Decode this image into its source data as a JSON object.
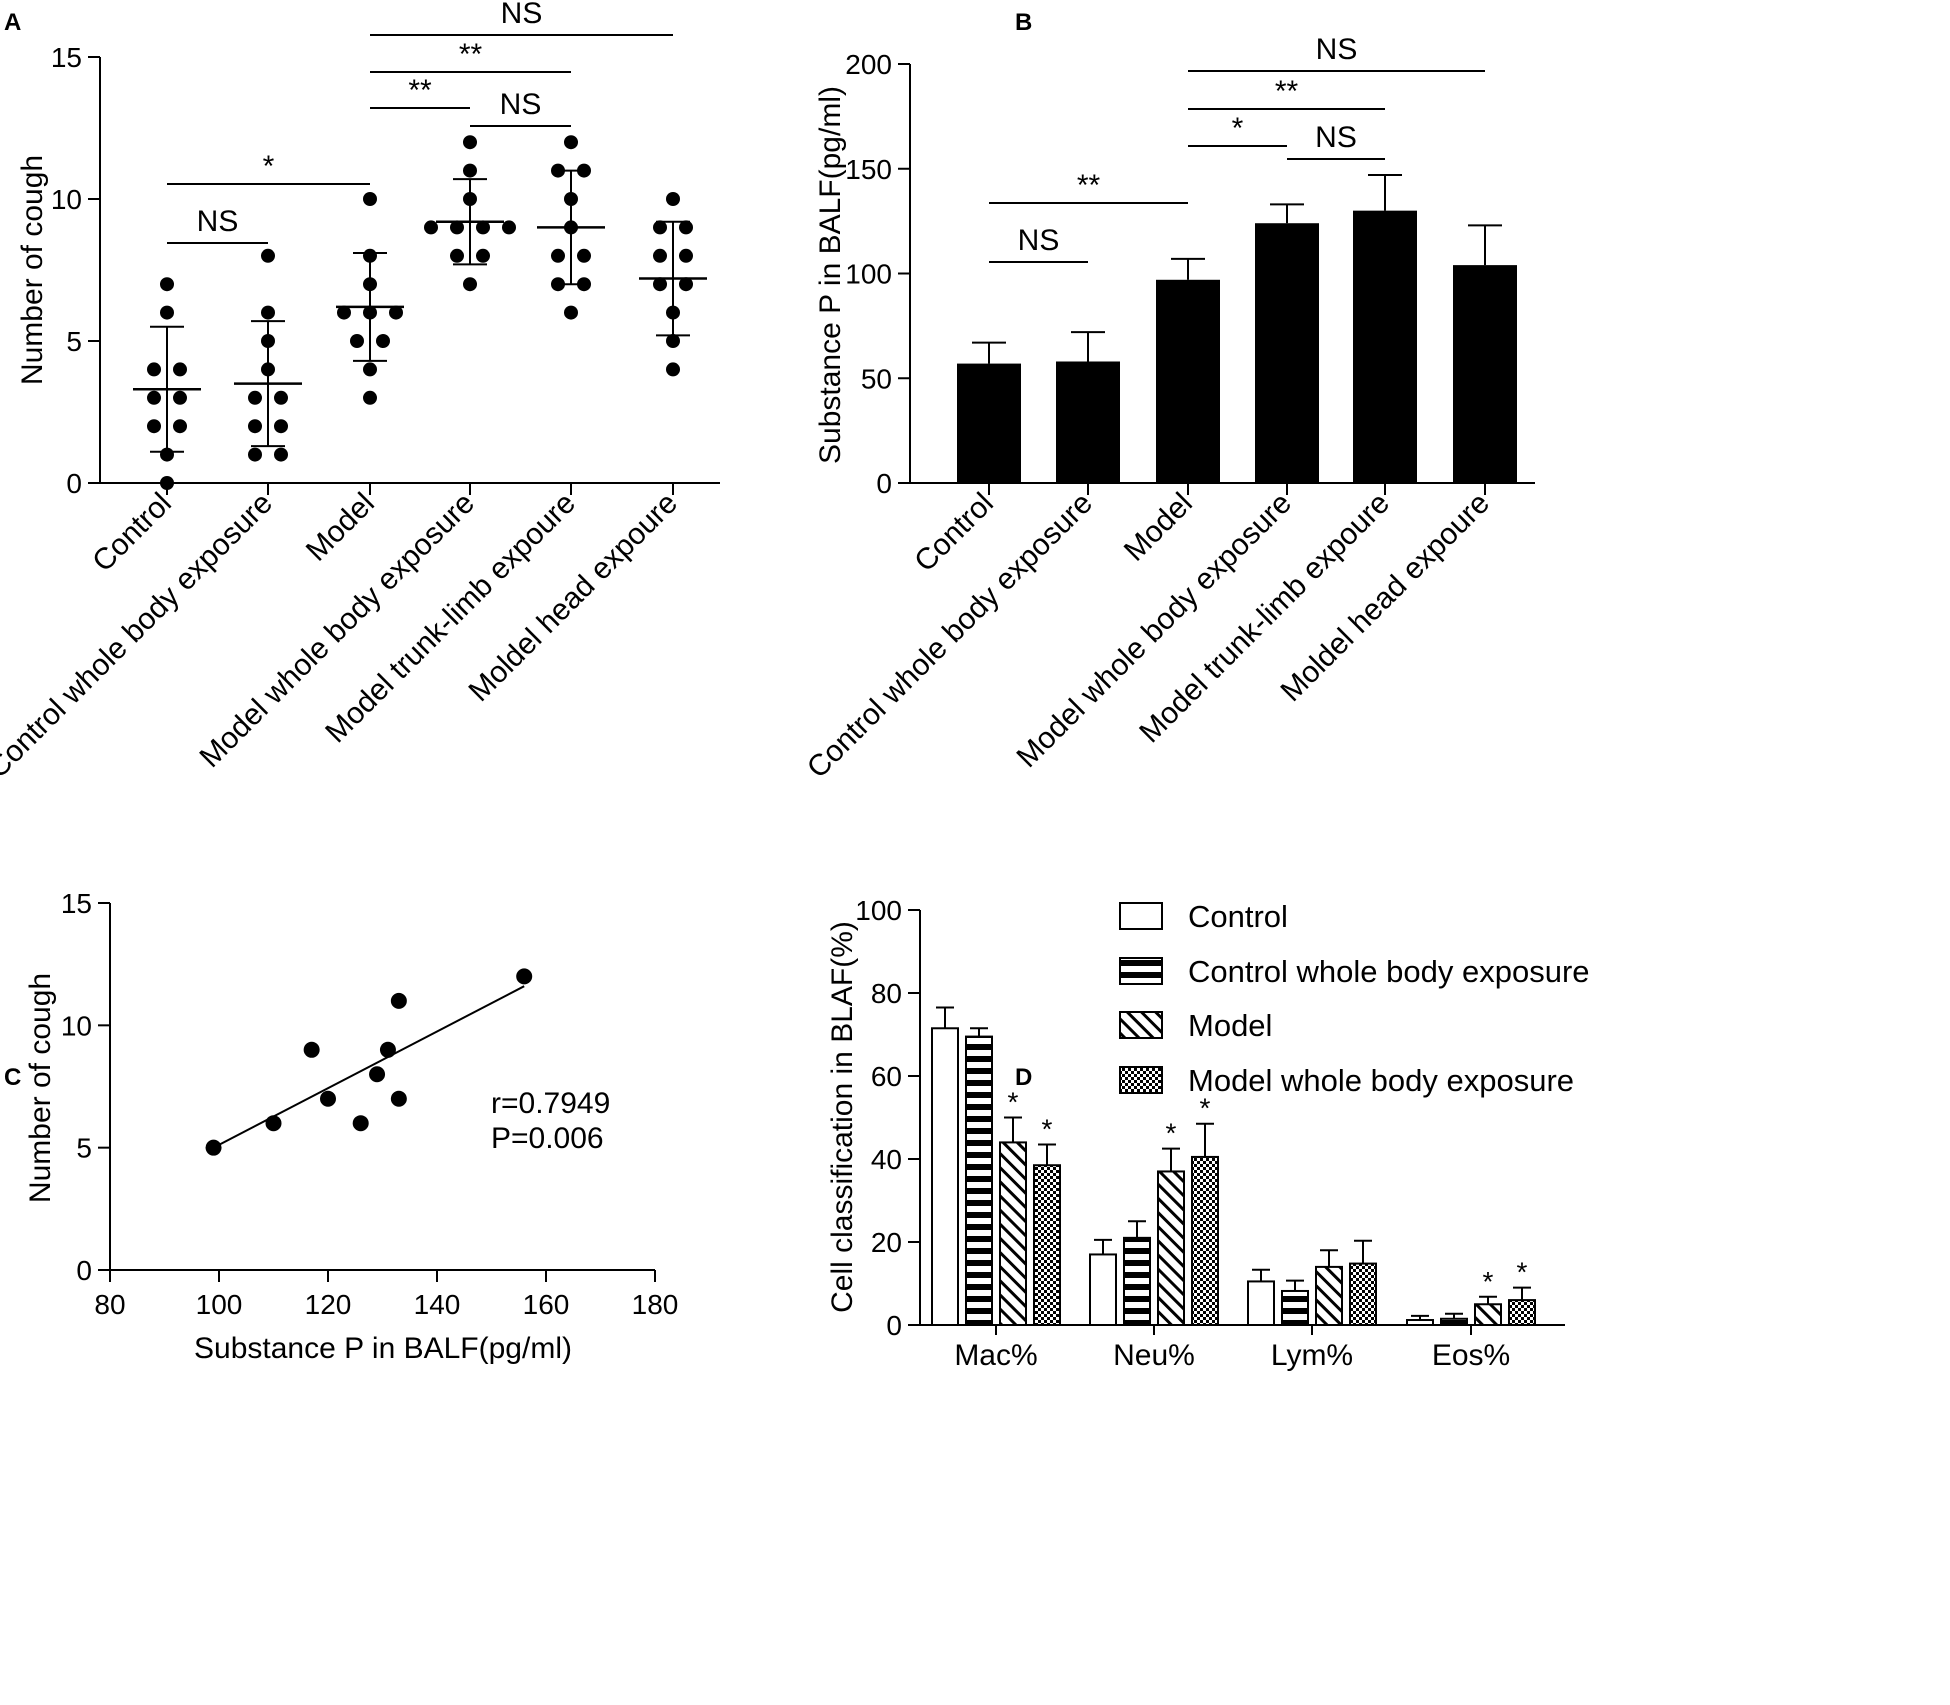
{
  "chart_data": [
    {
      "panel": "A",
      "type": "scatter",
      "title": "",
      "xlabel": "",
      "ylabel": "Number of cough",
      "ylim": [
        0,
        15
      ],
      "yticks": [
        0,
        5,
        10,
        15
      ],
      "categories": [
        "Control",
        "Control whole body exposure",
        "Model",
        "Model whole body exposure",
        "Model trunk-limb expoure",
        "Moldel head expoure"
      ],
      "points": [
        [
          0,
          1,
          2,
          2,
          3,
          3,
          4,
          4,
          6,
          7
        ],
        [
          1,
          1,
          2,
          2,
          3,
          3,
          4,
          5,
          6,
          8
        ],
        [
          3,
          4,
          5,
          5,
          6,
          6,
          6,
          7,
          8,
          10
        ],
        [
          7,
          8,
          8,
          9,
          9,
          9,
          9,
          10,
          11,
          12
        ],
        [
          6,
          7,
          7,
          8,
          8,
          9,
          10,
          11,
          11,
          12
        ],
        [
          4,
          5,
          6,
          7,
          7,
          8,
          8,
          9,
          9,
          10
        ]
      ],
      "mean": [
        3.3,
        3.5,
        6.2,
        9.2,
        9.0,
        7.2
      ],
      "sd": [
        2.2,
        2.2,
        1.9,
        1.5,
        2.0,
        2.0
      ],
      "significance": [
        {
          "from": 0,
          "to": 1,
          "label": "NS"
        },
        {
          "from": 0,
          "to": 2,
          "label": "*"
        },
        {
          "from": 2,
          "to": 3,
          "label": "**"
        },
        {
          "from": 3,
          "to": 4,
          "label": "NS"
        },
        {
          "from": 2,
          "to": 4,
          "label": "**"
        },
        {
          "from": 2,
          "to": 5,
          "label": "NS"
        }
      ]
    },
    {
      "panel": "B",
      "type": "bar",
      "title": "",
      "xlabel": "",
      "ylabel": "Substance P in BALF(pg/ml)",
      "ylim": [
        0,
        200
      ],
      "yticks": [
        0,
        50,
        100,
        150,
        200
      ],
      "categories": [
        "Control",
        "Control whole body exposure",
        "Model",
        "Model whole body exposure",
        "Model trunk-limb expoure",
        "Moldel head expoure"
      ],
      "values": [
        57,
        58,
        97,
        124,
        130,
        104
      ],
      "errors": [
        10,
        14,
        10,
        9,
        17,
        19
      ],
      "significance": [
        {
          "from": 0,
          "to": 1,
          "label": "NS"
        },
        {
          "from": 0,
          "to": 2,
          "label": "**"
        },
        {
          "from": 2,
          "to": 3,
          "label": "*"
        },
        {
          "from": 3,
          "to": 4,
          "label": "NS"
        },
        {
          "from": 2,
          "to": 4,
          "label": "**"
        },
        {
          "from": 2,
          "to": 5,
          "label": "NS"
        }
      ]
    },
    {
      "panel": "C",
      "type": "scatter",
      "title": "",
      "xlabel": "Substance P in BALF(pg/ml)",
      "ylabel": "Number of cough",
      "xlim": [
        80,
        180
      ],
      "ylim": [
        0,
        15
      ],
      "xticks": [
        80,
        100,
        120,
        140,
        160,
        180
      ],
      "yticks": [
        0,
        5,
        10,
        15
      ],
      "points": [
        {
          "x": 99,
          "y": 5
        },
        {
          "x": 110,
          "y": 6
        },
        {
          "x": 117,
          "y": 9
        },
        {
          "x": 120,
          "y": 7
        },
        {
          "x": 126,
          "y": 6
        },
        {
          "x": 129,
          "y": 8
        },
        {
          "x": 131,
          "y": 9
        },
        {
          "x": 133,
          "y": 11
        },
        {
          "x": 133,
          "y": 7
        },
        {
          "x": 156,
          "y": 12
        }
      ],
      "fit_line": {
        "x": [
          99,
          156
        ],
        "y": [
          5.0,
          11.6
        ]
      },
      "annotations": [
        "r=0.7949",
        "P=0.006"
      ]
    },
    {
      "panel": "D",
      "type": "bar",
      "title": "",
      "xlabel": "",
      "ylabel": "Cell classification in  BLAF(%)",
      "ylim": [
        0,
        100
      ],
      "yticks": [
        0,
        20,
        40,
        60,
        80,
        100
      ],
      "categories": [
        "Mac%",
        "Neu%",
        "Lym%",
        "Eos%"
      ],
      "series": [
        {
          "name": "Control",
          "pattern": "empty",
          "values": [
            71.5,
            17,
            10.5,
            1.2
          ],
          "errors": [
            5,
            3.5,
            2.8,
            1
          ],
          "stars": [
            "",
            "",
            "",
            ""
          ]
        },
        {
          "name": "Control whole body exposure",
          "pattern": "horizontal",
          "values": [
            69.5,
            21,
            8.2,
            1.5
          ],
          "errors": [
            2,
            4,
            2.5,
            1.2
          ],
          "stars": [
            "",
            "",
            "",
            ""
          ]
        },
        {
          "name": "Model",
          "pattern": "diagonal",
          "values": [
            44,
            37,
            14,
            5
          ],
          "errors": [
            6,
            5.5,
            4,
            1.8
          ],
          "stars": [
            "*",
            "*",
            "",
            "*"
          ]
        },
        {
          "name": "Model whole body exposure",
          "pattern": "checker",
          "values": [
            38.5,
            40.5,
            14.8,
            6
          ],
          "errors": [
            5,
            8,
            5.5,
            3
          ],
          "stars": [
            "*",
            "*",
            "",
            "*"
          ]
        }
      ]
    }
  ],
  "panel_labels": {
    "a": "A",
    "b": "B",
    "c": "C",
    "d": "D"
  }
}
